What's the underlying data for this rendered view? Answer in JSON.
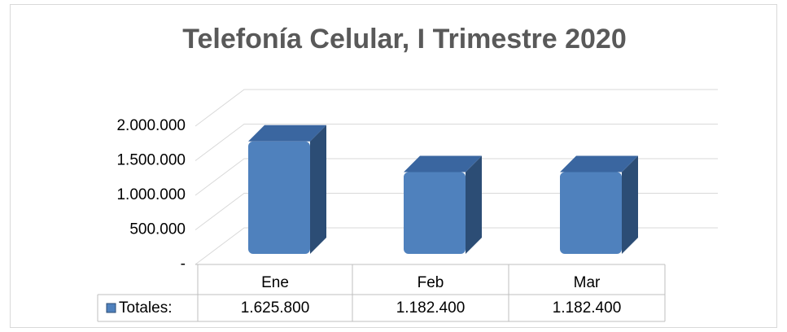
{
  "chart_data": {
    "type": "bar3d",
    "title": "Telefonía Celular, I Trimestre 2020",
    "categories": [
      "Ene",
      "Feb",
      "Mar"
    ],
    "series": [
      {
        "name": "Totales:",
        "color": "#4f81bd",
        "values": [
          1625800,
          1182400,
          1182400
        ],
        "value_labels": [
          "1.625.800",
          "1.182.400",
          "1.182.400"
        ]
      }
    ],
    "ylim": [
      0,
      2000000
    ],
    "yticks": [
      {
        "value": 0,
        "label": "-"
      },
      {
        "value": 500000,
        "label": "500.000"
      },
      {
        "value": 1000000,
        "label": "1.000.000"
      },
      {
        "value": 1500000,
        "label": "1.500.000"
      },
      {
        "value": 2000000,
        "label": "2.000.000"
      }
    ],
    "grid": true,
    "legend": "table"
  }
}
